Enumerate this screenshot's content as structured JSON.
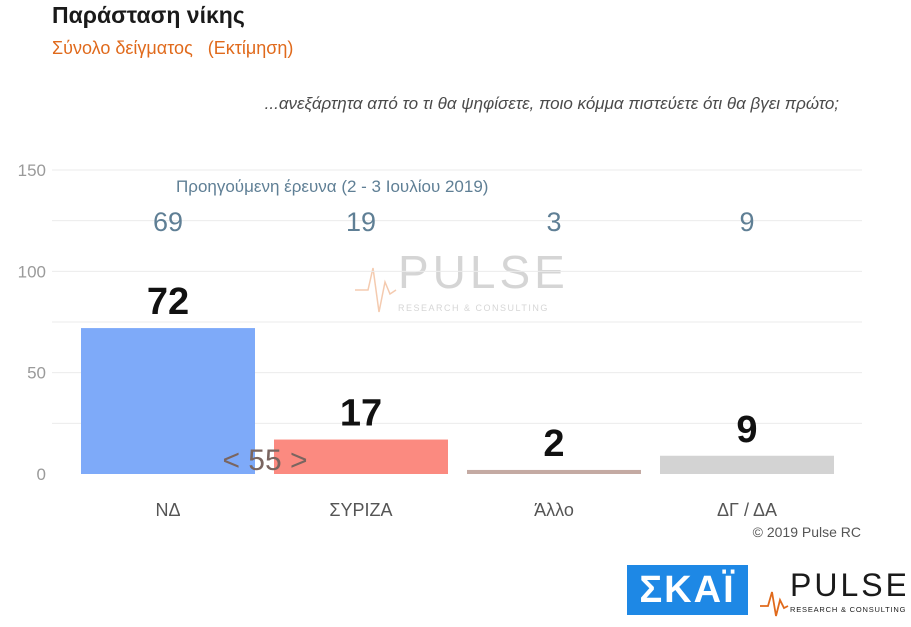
{
  "title": "Παράσταση νίκης",
  "subtitle": "Σύνολο δείγματος   (Εκτίμηση)",
  "question": "...ανεξάρτητα από το τι θα ψηφίσετε, ποιο κόμμα πιστεύετε ότι θα βγει πρώτο;",
  "previous_survey_label": "Προηγούμενη έρευνα  (2 - 3  Ιουλίου 2019)",
  "copyright": "© 2019 Pulse RC",
  "watermark": {
    "name": "PULSE",
    "tagline": "RESEARCH & CONSULTING"
  },
  "logos": {
    "skai": "ΣΚΑΪ",
    "pulse": "PULSE",
    "pulse_tagline": "RESEARCH & CONSULTING"
  },
  "colors": {
    "nd": "#7eaaf9",
    "syriza": "#fb8a80",
    "other": "#c4aaa3",
    "blank": "#d3d3d3",
    "accent": "#e06a1c",
    "prev": "#5f7f95"
  },
  "chart_data": {
    "type": "bar",
    "categories": [
      "ΝΔ",
      "ΣΥΡΙΖΑ",
      "Άλλο",
      "ΔΓ / ΔΑ"
    ],
    "values": [
      72,
      17,
      2,
      9
    ],
    "previous_values": [
      69,
      19,
      3,
      9
    ],
    "bar_colors": [
      "#7eaaf9",
      "#fb8a80",
      "#c4aaa3",
      "#d3d3d3"
    ],
    "yticks": [
      0,
      50,
      100,
      150
    ],
    "ylim": [
      0,
      150
    ],
    "gap_annotation": "< 55 >",
    "grid": true
  }
}
